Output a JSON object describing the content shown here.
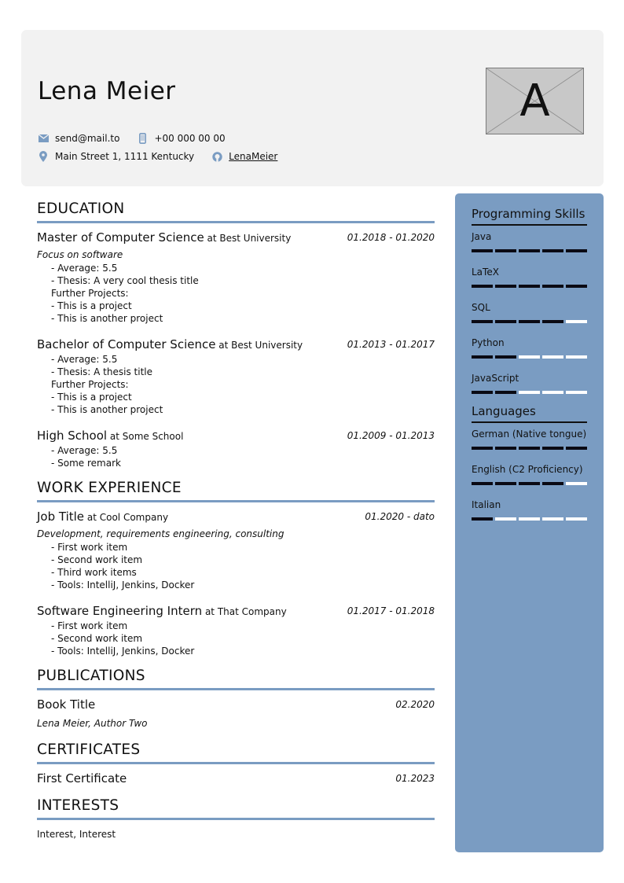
{
  "header": {
    "name": "Lena Meier",
    "email": "send@mail.to",
    "phone": "+00 000 00 00",
    "address": "Main Street 1, 1111 Kentucky",
    "github": "LenaMeier",
    "photo_letter": "A",
    "icons": [
      "envelope-icon",
      "mobile-phone-icon",
      "map-marker-icon",
      "github-icon"
    ]
  },
  "colors": {
    "accent": "#7a9cc2",
    "header_bg": "#f2f2f2",
    "bar_filled": "#0a0a14",
    "bar_empty": "#ffffff"
  },
  "sections": [
    {
      "title": "EDUCATION",
      "entries": [
        {
          "title": "Master of Computer Science",
          "at": "at Best University",
          "date": "01.2018 - 01.2020",
          "focus": "Focus on software",
          "lines": [
            {
              "t": "item",
              "v": "- Average: 5.5"
            },
            {
              "t": "item",
              "v": "- Thesis: A very cool thesis title"
            },
            {
              "t": "fp",
              "v": "Further Projects:"
            },
            {
              "t": "item",
              "v": "- This is a project"
            },
            {
              "t": "item",
              "v": "- This is another project"
            }
          ]
        },
        {
          "title": "Bachelor of Computer Science",
          "at": "at Best University",
          "date": "01.2013 - 01.2017",
          "lines": [
            {
              "t": "item",
              "v": "- Average: 5.5"
            },
            {
              "t": "item",
              "v": "- Thesis: A thesis title"
            },
            {
              "t": "fp",
              "v": "Further Projects:"
            },
            {
              "t": "item",
              "v": "- This is a project"
            },
            {
              "t": "item",
              "v": "- This is another project"
            }
          ]
        },
        {
          "title": "High School",
          "at": "at Some School",
          "date": "01.2009 - 01.2013",
          "lines": [
            {
              "t": "item",
              "v": "- Average: 5.5"
            },
            {
              "t": "item",
              "v": "- Some remark"
            }
          ]
        }
      ]
    },
    {
      "title": "WORK EXPERIENCE",
      "entries": [
        {
          "title": "Job Title",
          "at": "at Cool Company",
          "date": "01.2020 - dato",
          "focus": "Development, requirements engineering, consulting",
          "lines": [
            {
              "t": "item",
              "v": "- First work item"
            },
            {
              "t": "item",
              "v": "- Second work item"
            },
            {
              "t": "item",
              "v": "- Third work items"
            },
            {
              "t": "item",
              "v": "- Tools: IntelliJ, Jenkins, Docker"
            }
          ]
        },
        {
          "title": "Software Engineering Intern",
          "at": "at That Company",
          "date": "01.2017 - 01.2018",
          "lines": [
            {
              "t": "item",
              "v": "- First work item"
            },
            {
              "t": "item",
              "v": "- Second work item"
            },
            {
              "t": "item",
              "v": "- Tools: IntelliJ, Jenkins, Docker"
            }
          ]
        }
      ]
    },
    {
      "title": "PUBLICATIONS",
      "entries": [
        {
          "title": "Book Title",
          "date": "02.2020",
          "author": "Lena Meier, Author Two"
        }
      ]
    },
    {
      "title": "CERTIFICATES",
      "entries": [
        {
          "title": "First Certificate",
          "date": "01.2023"
        }
      ]
    },
    {
      "title": "INTERESTS",
      "text": "Interest, Interest"
    }
  ],
  "sidebar": [
    {
      "title": "Programming Skills",
      "items": [
        {
          "label": "Java",
          "level": 5,
          "max": 5
        },
        {
          "label": "LaTeX",
          "level": 5,
          "max": 5
        },
        {
          "label": "SQL",
          "level": 4,
          "max": 5
        },
        {
          "label": "Python",
          "level": 2,
          "max": 5
        },
        {
          "label": "JavaScript",
          "level": 2,
          "max": 5
        }
      ]
    },
    {
      "title": "Languages",
      "items": [
        {
          "label": "German (Native tongue)",
          "level": 5,
          "max": 5
        },
        {
          "label": "English (C2 Proficiency)",
          "level": 4,
          "max": 5
        },
        {
          "label": "Italian",
          "level": 1,
          "max": 5
        }
      ]
    }
  ]
}
